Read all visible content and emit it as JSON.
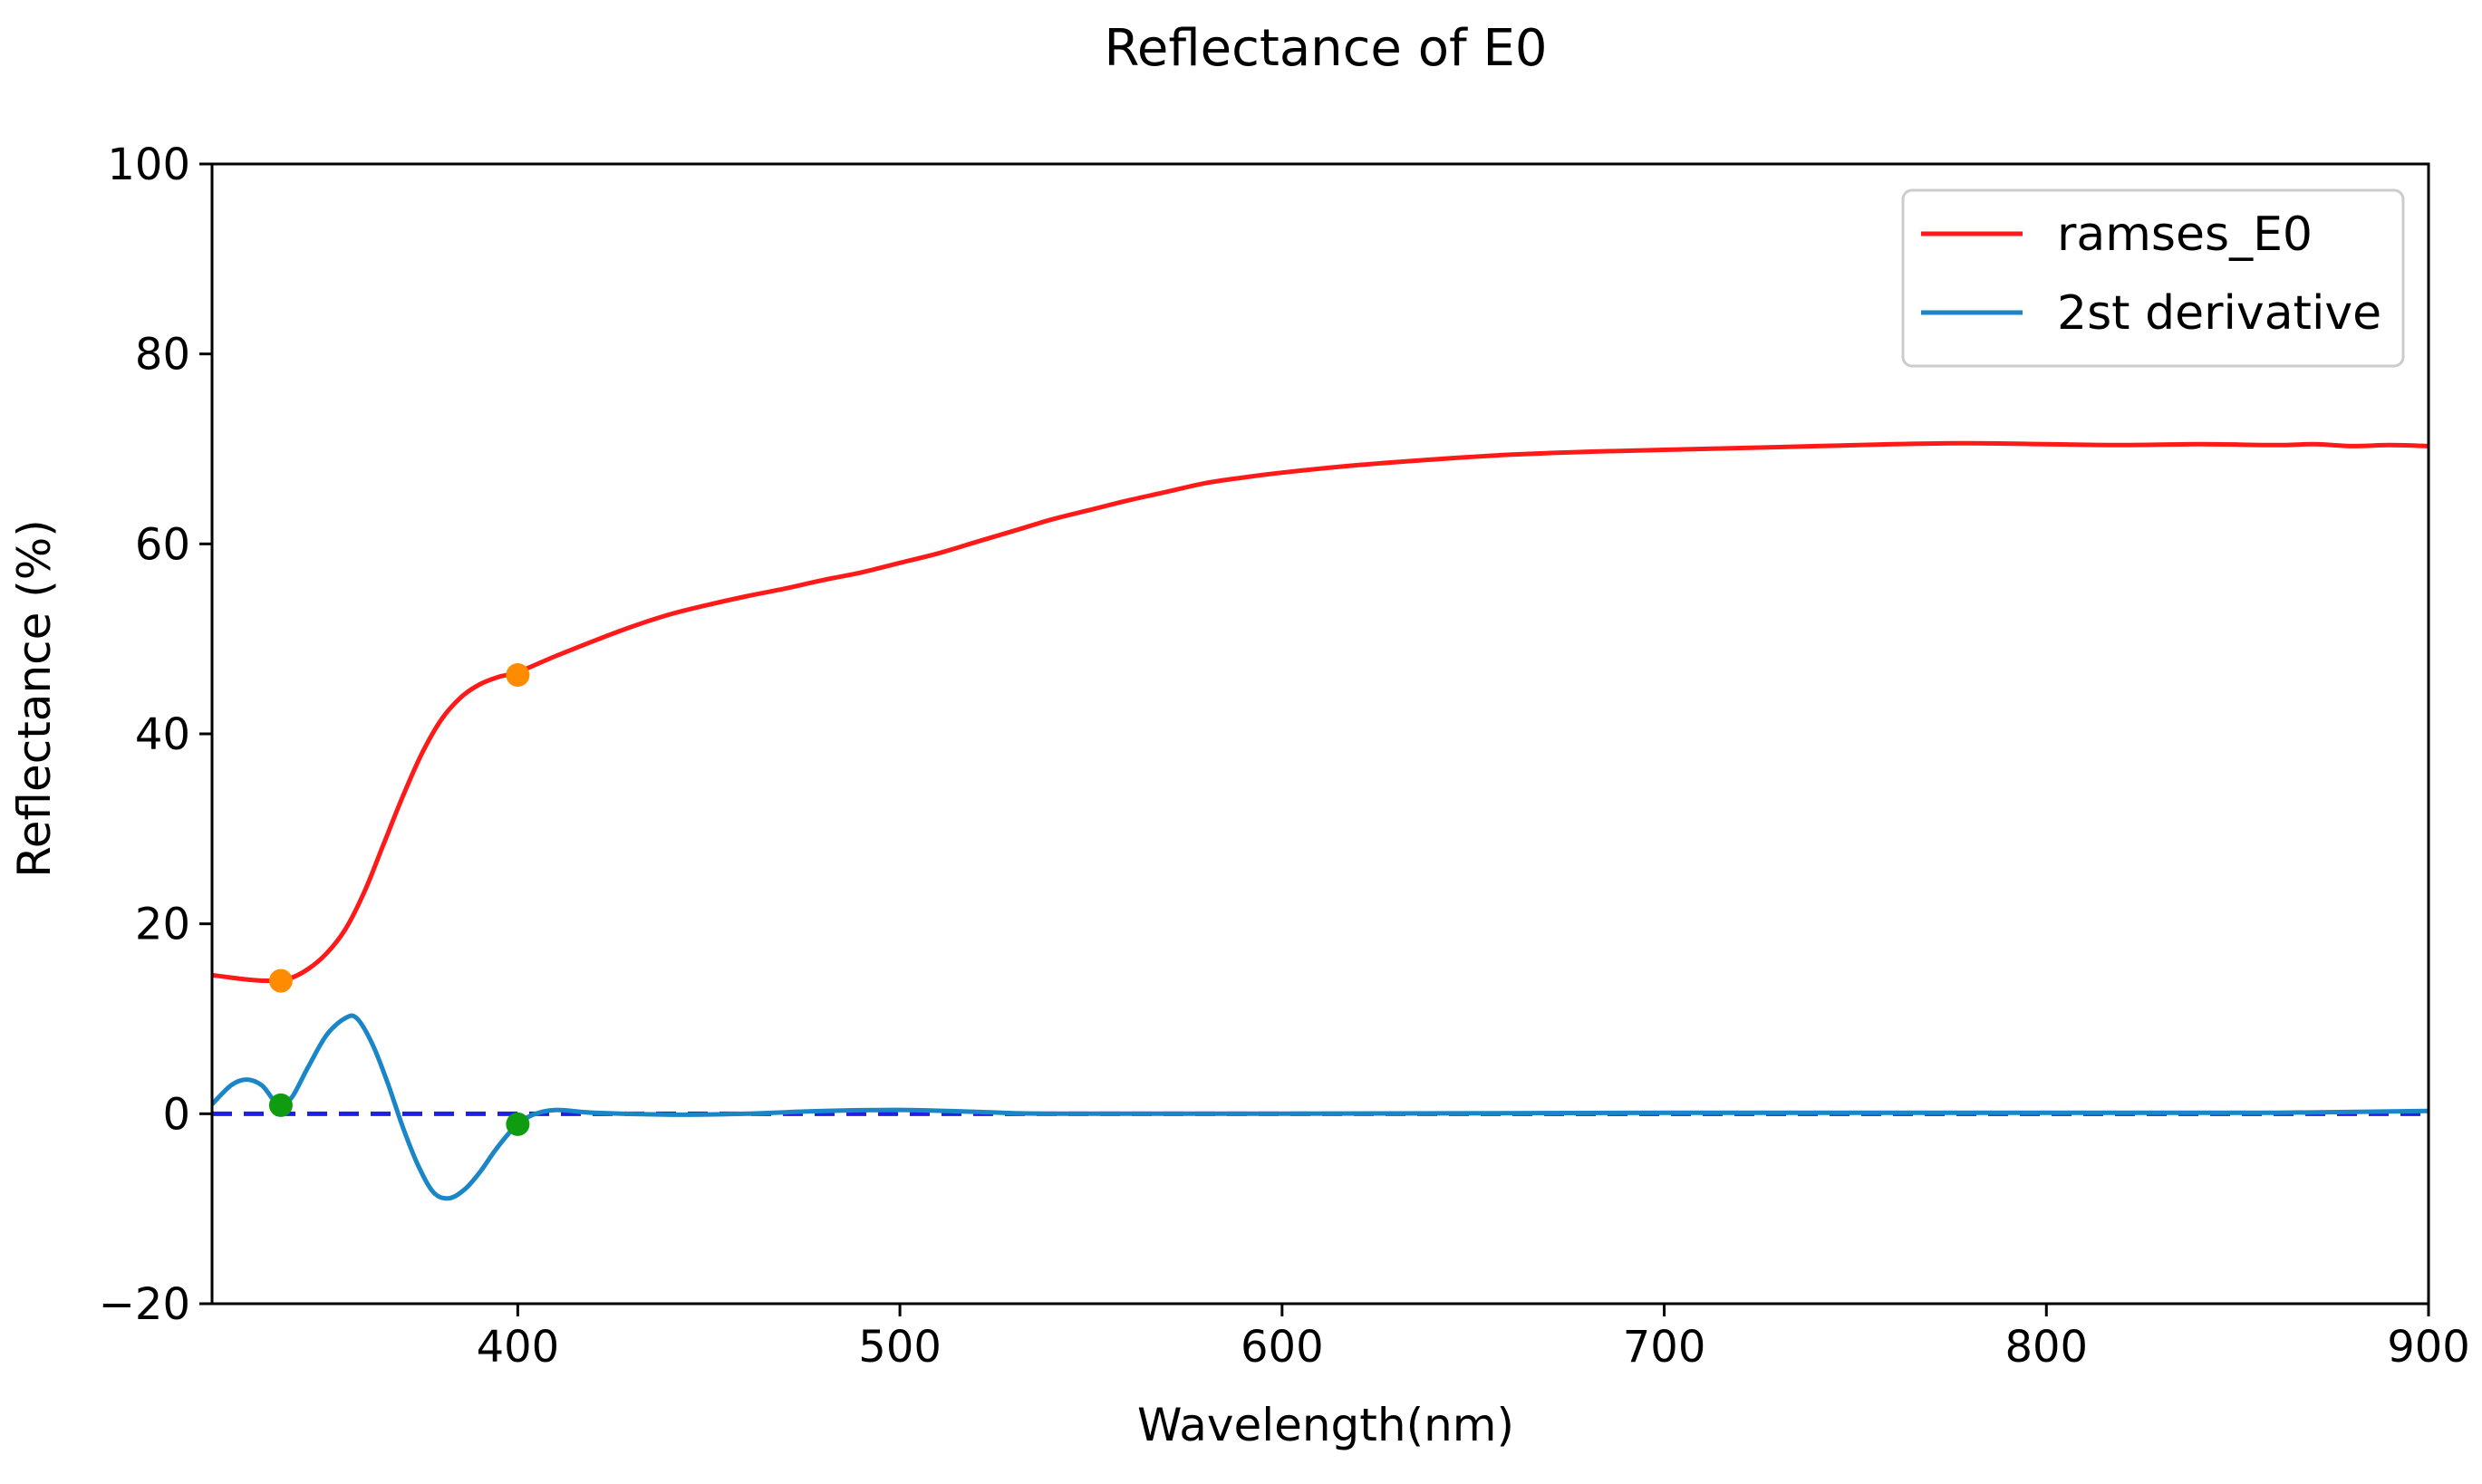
{
  "chart_data": {
    "type": "line",
    "title": "Reflectance of E0",
    "xlabel": "Wavelength(nm)",
    "ylabel": "Reflectance (%)",
    "xlim": [
      320,
      900
    ],
    "ylim": [
      -20,
      100
    ],
    "x_ticks": [
      400,
      500,
      600,
      700,
      800,
      900
    ],
    "x_tick_labels": [
      "400",
      "500",
      "600",
      "700",
      "800",
      "900"
    ],
    "y_ticks": [
      -20,
      0,
      20,
      40,
      60,
      80,
      100
    ],
    "y_tick_labels": [
      "−20",
      "0",
      "20",
      "40",
      "60",
      "80",
      "100"
    ],
    "grid": false,
    "legend_position": "top-right",
    "colors": {
      "ramses": "#ff1a1a",
      "derivative": "#1a86c8",
      "zero_line": "#1f1fe6",
      "reflectance_markers": "#ff8c00",
      "derivative_markers": "#109c10"
    },
    "series": [
      {
        "name": "ramses_E0",
        "points": [
          [
            320,
            14.6
          ],
          [
            330,
            14.1
          ],
          [
            336,
            14.0
          ],
          [
            340,
            14.2
          ],
          [
            345,
            15.2
          ],
          [
            350,
            16.9
          ],
          [
            355,
            19.5
          ],
          [
            360,
            23.5
          ],
          [
            365,
            28.5
          ],
          [
            370,
            33.5
          ],
          [
            375,
            38.0
          ],
          [
            380,
            41.5
          ],
          [
            385,
            43.8
          ],
          [
            390,
            45.2
          ],
          [
            395,
            46.0
          ],
          [
            400,
            46.5
          ],
          [
            410,
            48.2
          ],
          [
            420,
            49.8
          ],
          [
            430,
            51.3
          ],
          [
            440,
            52.6
          ],
          [
            450,
            53.6
          ],
          [
            460,
            54.5
          ],
          [
            470,
            55.3
          ],
          [
            480,
            56.2
          ],
          [
            490,
            57.0
          ],
          [
            500,
            58.0
          ],
          [
            510,
            59.0
          ],
          [
            520,
            60.2
          ],
          [
            530,
            61.4
          ],
          [
            540,
            62.6
          ],
          [
            550,
            63.6
          ],
          [
            560,
            64.6
          ],
          [
            570,
            65.5
          ],
          [
            580,
            66.4
          ],
          [
            590,
            67.0
          ],
          [
            600,
            67.5
          ],
          [
            620,
            68.3
          ],
          [
            640,
            68.9
          ],
          [
            660,
            69.4
          ],
          [
            680,
            69.7
          ],
          [
            700,
            69.9
          ],
          [
            720,
            70.1
          ],
          [
            740,
            70.3
          ],
          [
            760,
            70.5
          ],
          [
            780,
            70.6
          ],
          [
            800,
            70.5
          ],
          [
            820,
            70.4
          ],
          [
            840,
            70.5
          ],
          [
            860,
            70.4
          ],
          [
            870,
            70.5
          ],
          [
            880,
            70.3
          ],
          [
            890,
            70.4
          ],
          [
            900,
            70.3
          ]
        ]
      },
      {
        "name": "2st derivative",
        "points": [
          [
            320,
            1.0
          ],
          [
            325,
            3.0
          ],
          [
            329,
            3.6
          ],
          [
            333,
            3.0
          ],
          [
            336,
            1.5
          ],
          [
            338,
            0.9
          ],
          [
            341,
            1.8
          ],
          [
            345,
            4.8
          ],
          [
            350,
            8.3
          ],
          [
            355,
            10.1
          ],
          [
            358,
            10.0
          ],
          [
            362,
            7.3
          ],
          [
            366,
            3.2
          ],
          [
            370,
            -1.5
          ],
          [
            374,
            -5.5
          ],
          [
            378,
            -8.3
          ],
          [
            382,
            -8.9
          ],
          [
            386,
            -8.0
          ],
          [
            390,
            -6.2
          ],
          [
            394,
            -3.9
          ],
          [
            398,
            -1.9
          ],
          [
            400,
            -1.1
          ],
          [
            404,
            -0.1
          ],
          [
            410,
            0.4
          ],
          [
            420,
            0.1
          ],
          [
            440,
            -0.1
          ],
          [
            460,
            0.0
          ],
          [
            480,
            0.3
          ],
          [
            500,
            0.4
          ],
          [
            520,
            0.2
          ],
          [
            540,
            0.0
          ],
          [
            600,
            0.0
          ],
          [
            700,
            0.1
          ],
          [
            800,
            0.1
          ],
          [
            860,
            0.1
          ],
          [
            900,
            0.3
          ]
        ]
      }
    ],
    "reference_line": {
      "y": 0,
      "style": "dashed"
    },
    "markers": {
      "reflectance": [
        [
          338,
          14.0
        ],
        [
          400,
          46.2
        ]
      ],
      "derivative": [
        [
          338,
          0.9
        ],
        [
          400,
          -1.1
        ]
      ]
    }
  }
}
